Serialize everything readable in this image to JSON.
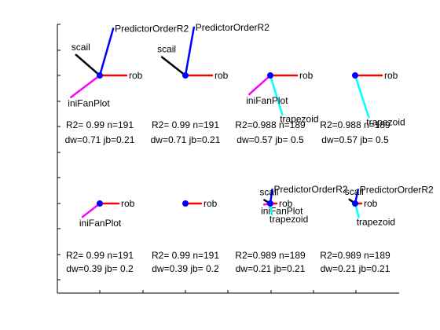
{
  "chart_data": {
    "type": "fan-plot-grid",
    "colors": {
      "rob": "#ff0000",
      "scail": "#000000",
      "PredictorOrderR2": "#0000ff",
      "iniFanPlot": "#ff00ff",
      "trapezoid": "#00ffff",
      "hub": "#0000ff",
      "axis": "#000000"
    },
    "panels": [
      {
        "vectors": [
          {
            "label": "rob",
            "angle": 0,
            "length": 0.85
          },
          {
            "label": "PredictorOrderR2",
            "angle": 74,
            "length": 1.55
          },
          {
            "label": "scail",
            "angle": 139,
            "length": 1.0
          },
          {
            "label": "iniFanPlot",
            "angle": 217,
            "length": 1.15
          }
        ],
        "stats": [
          "R2= 0.99 n=191",
          "dw=0.71 jb=0.21"
        ]
      },
      {
        "vectors": [
          {
            "label": "rob",
            "angle": 0,
            "length": 0.85
          },
          {
            "label": "PredictorOrderR2",
            "angle": 80,
            "length": 1.55
          },
          {
            "label": "scail",
            "angle": 142,
            "length": 0.95
          }
        ],
        "stats": [
          "R2= 0.99 n=191",
          "dw=0.71 jb=0.21"
        ]
      },
      {
        "vectors": [
          {
            "label": "rob",
            "angle": 0,
            "length": 0.85
          },
          {
            "label": "trapezoid",
            "angle": 287,
            "length": 1.3
          },
          {
            "label": "iniFanPlot",
            "angle": 222,
            "length": 0.9
          }
        ],
        "stats": [
          "R2=0.988 n=189",
          "dw=0.57 jb= 0.5"
        ]
      },
      {
        "vectors": [
          {
            "label": "rob",
            "angle": 0,
            "length": 0.85
          },
          {
            "label": "trapezoid",
            "angle": 288,
            "length": 1.4
          }
        ],
        "stats": [
          "R2=0.988 n=189",
          "dw=0.57 jb= 0.5"
        ]
      },
      {
        "vectors": [
          {
            "label": "rob",
            "angle": 0,
            "length": 0.6
          },
          {
            "label": "iniFanPlot",
            "angle": 218,
            "length": 0.7
          }
        ],
        "stats": [
          "R2= 0.99 n=191",
          "dw=0.39 jb= 0.2"
        ]
      },
      {
        "vectors": [
          {
            "label": "rob",
            "angle": 0,
            "length": 0.5
          }
        ],
        "stats": [
          "R2= 0.99 n=191",
          "dw=0.39 jb= 0.2"
        ]
      },
      {
        "vectors": [
          {
            "label": "rob",
            "angle": 0,
            "length": 0.2
          },
          {
            "label": "PredictorOrderR2",
            "angle": 82,
            "length": 0.45
          },
          {
            "label": "scail",
            "angle": 150,
            "length": 0.22
          },
          {
            "label": "iniFanPlot",
            "angle": 190,
            "length": 0.2
          },
          {
            "label": "trapezoid",
            "angle": 278,
            "length": 0.35
          }
        ],
        "stats": [
          "R2=0.989 n=189",
          "dw=0.21 jb=0.21"
        ]
      },
      {
        "vectors": [
          {
            "label": "rob",
            "angle": 0,
            "length": 0.2
          },
          {
            "label": "PredictorOrderR2",
            "angle": 78,
            "length": 0.45
          },
          {
            "label": "scail",
            "angle": 145,
            "length": 0.22
          },
          {
            "label": "trapezoid",
            "angle": 285,
            "length": 0.45
          }
        ],
        "stats": [
          "R2=0.989 n=189",
          "dw=0.21 jb=0.21"
        ]
      }
    ]
  }
}
